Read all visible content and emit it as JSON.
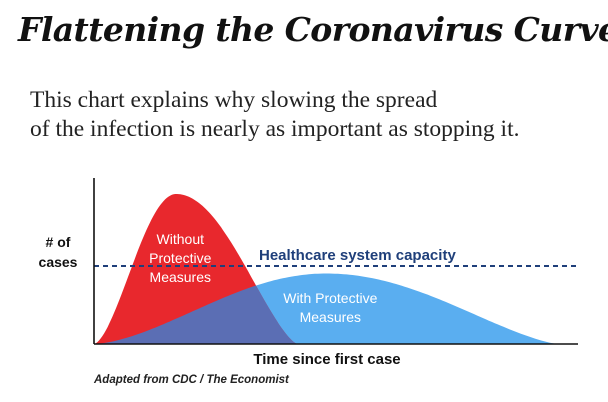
{
  "title": "Flattening the Coronavirus Curve",
  "subtitle_lines": [
    "This chart explains why slowing the spread",
    "of the infection is nearly as important as stopping it."
  ],
  "credit": "Adapted from CDC / The Economist",
  "colors": {
    "without": "#e8282d",
    "with": "#5aaef0",
    "overlap": "#5b6eb4",
    "capacity": "#1f3f7a",
    "axis": "#111111"
  },
  "chart_data": {
    "type": "area",
    "xlabel": "Time since first case",
    "ylabel_lines": [
      "# of",
      "cases"
    ],
    "series": [
      {
        "name": "Without Protective Measures",
        "label_lines": [
          "Without",
          "Protective",
          "Measures"
        ],
        "peak_x": 0.17,
        "peak_y": 1.0,
        "end_x": 0.42
      },
      {
        "name": "With Protective Measures",
        "label_lines": [
          "With Protective",
          "Measures"
        ],
        "peak_x": 0.48,
        "peak_y": 0.47,
        "end_x": 0.96
      }
    ],
    "reference_lines": [
      {
        "name": "Healthcare system capacity",
        "y": 0.52,
        "style": "dashed"
      }
    ],
    "xlim": [
      0,
      1
    ],
    "ylim": [
      0,
      1
    ]
  }
}
